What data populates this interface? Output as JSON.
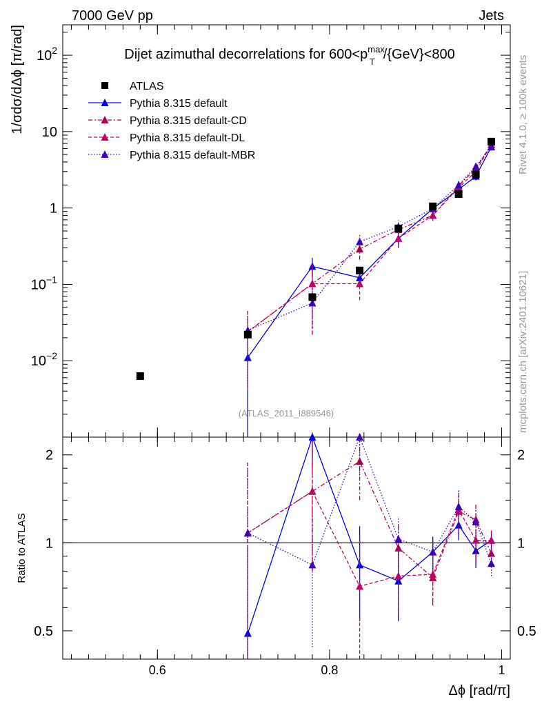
{
  "header": {
    "left": "7000 GeV pp",
    "right": "Jets"
  },
  "side_labels": {
    "rivet": "Rivet 4.1.0, ≥ 100k events",
    "mcplots": "mcplots.cern.ch [arXiv:2401.10621]"
  },
  "chart_data": {
    "type": "scatter",
    "title_parts": {
      "main": "Dijet azimuthal decorrelations for 600<p",
      "sup": "max",
      "sub": "T",
      "tail": "/{GeV}<800"
    },
    "xlabel": "Δϕ [rad/π]",
    "ylabel": "1/σdσ/dΔϕ [π/rad]",
    "ratio_ylabel": "Ratio to ATLAS",
    "analysis_id": "(ATLAS_2011_I889546)",
    "xlim": [
      0.49,
      1.01
    ],
    "ylim": [
      0.001,
      250
    ],
    "ratio_ylim": [
      0.4,
      2.3
    ],
    "x_ticks": [
      "0.6",
      "0.8",
      "1"
    ],
    "x_tick_values": [
      0.6,
      0.8,
      1.0
    ],
    "y_ticks": [
      {
        "value": 0.01,
        "base": "10",
        "exp": "−2"
      },
      {
        "value": 0.1,
        "base": "10",
        "exp": "−1"
      },
      {
        "value": 1,
        "label": "1"
      },
      {
        "value": 10,
        "label": "10"
      },
      {
        "value": 100,
        "base": "10",
        "exp": "2"
      }
    ],
    "ratio_ticks": [
      "0.5",
      "1",
      "2"
    ],
    "ratio_tick_values": [
      0.5,
      1,
      2
    ],
    "data": {
      "name": "ATLAS",
      "color": "#000000",
      "x": [
        0.58,
        0.705,
        0.78,
        0.835,
        0.88,
        0.92,
        0.95,
        0.97,
        0.988
      ],
      "y": [
        0.0063,
        0.022,
        0.068,
        0.152,
        0.54,
        1.05,
        1.52,
        2.75,
        7.4
      ]
    },
    "series": [
      {
        "name": "Pythia 8.315 default",
        "color": "#0000dd",
        "dash": "none",
        "x": [
          0.705,
          0.78,
          0.835,
          0.88,
          0.92,
          0.95,
          0.97,
          0.988
        ],
        "y": [
          0.011,
          0.172,
          0.122,
          0.4,
          0.98,
          1.75,
          2.6,
          6.3
        ],
        "err": [
          0.011,
          0.05,
          0.03,
          0.1,
          0.12,
          0.2,
          0.3,
          0.6
        ],
        "ratio": [
          0.49,
          2.3,
          0.84,
          0.74,
          0.93,
          1.15,
          0.94,
          1.02
        ],
        "ratio_err": [
          0.49,
          0.5,
          0.3,
          0.2,
          0.12,
          0.13,
          0.12,
          0.08
        ]
      },
      {
        "name": "Pythia 8.315 default-CD",
        "color": "#b0004c",
        "dash": "6,3,2,3",
        "x": [
          0.705,
          0.78,
          0.835,
          0.88,
          0.92,
          0.95,
          0.97,
          0.988
        ],
        "y": [
          0.024,
          0.102,
          0.29,
          0.52,
          0.8,
          1.95,
          3.3,
          6.8
        ],
        "err": [
          0.02,
          0.08,
          0.08,
          0.12,
          0.12,
          0.3,
          0.4,
          0.6
        ],
        "ratio": [
          1.08,
          1.5,
          1.9,
          0.96,
          0.76,
          1.28,
          1.2,
          0.92
        ],
        "ratio_err": [
          0.8,
          0.7,
          0.5,
          0.2,
          0.15,
          0.2,
          0.15,
          0.08
        ]
      },
      {
        "name": "Pythia 8.315 default-DL",
        "color": "#c0006a",
        "dash": "5,3",
        "x": [
          0.705,
          0.78,
          0.835,
          0.88,
          0.92,
          0.95,
          0.97,
          0.988
        ],
        "y": [
          0.024,
          0.102,
          0.102,
          0.4,
          0.8,
          1.85,
          3.0,
          6.8
        ],
        "err": [
          0.02,
          0.08,
          0.04,
          0.1,
          0.12,
          0.3,
          0.4,
          0.6
        ],
        "ratio": [
          1.08,
          1.5,
          0.71,
          0.77,
          0.78,
          1.3,
          1.02,
          1.02
        ],
        "ratio_err": [
          0.8,
          0.7,
          0.35,
          0.2,
          0.15,
          0.2,
          0.15,
          0.08
        ]
      },
      {
        "name": "Pythia 8.315 default-MBR",
        "color": "#3a00c0",
        "dash": "1.5,2.5",
        "x": [
          0.705,
          0.78,
          0.835,
          0.88,
          0.92,
          0.95,
          0.97,
          0.988
        ],
        "y": [
          0.025,
          0.057,
          0.36,
          0.57,
          0.98,
          2.0,
          3.5,
          6.3
        ],
        "err": [
          0.02,
          0.03,
          0.1,
          0.12,
          0.12,
          0.3,
          0.4,
          0.6
        ],
        "ratio": [
          1.08,
          0.84,
          2.3,
          1.03,
          0.93,
          1.33,
          1.18,
          0.85
        ],
        "ratio_err": [
          0.8,
          0.4,
          0.6,
          0.2,
          0.12,
          0.2,
          0.15,
          0.08
        ]
      }
    ]
  }
}
